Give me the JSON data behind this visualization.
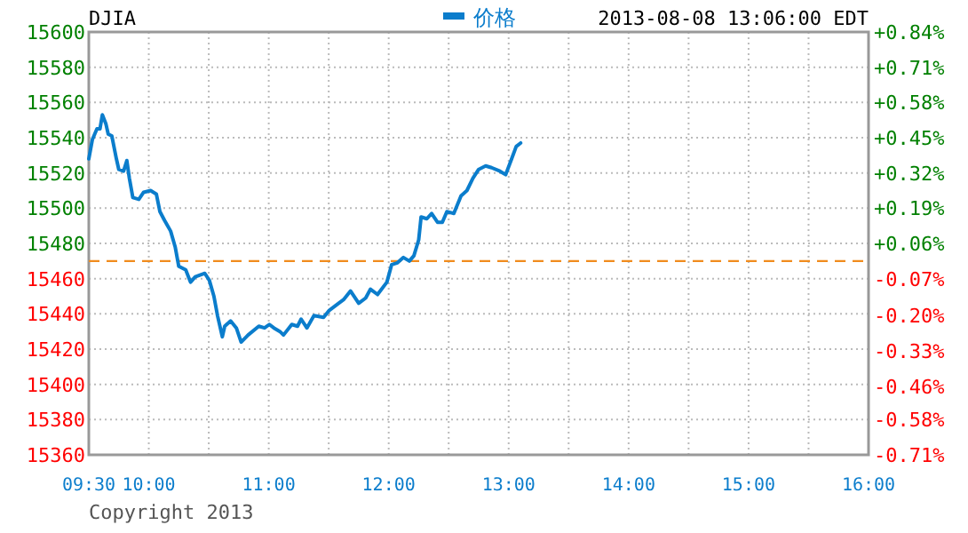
{
  "chart_data": {
    "type": "line",
    "title": "DJIA",
    "subtitle": "2013-08-08 13:06:00 EDT",
    "annotations": [
      "Copyright 2013"
    ],
    "x": [
      9.5,
      9.53,
      9.568,
      9.593,
      9.613,
      9.642,
      9.662,
      9.692,
      9.73,
      9.75,
      9.79,
      9.817,
      9.838,
      9.867,
      9.917,
      9.957,
      10.015,
      10.063,
      10.093,
      10.132,
      10.182,
      10.22,
      10.25,
      10.308,
      10.348,
      10.387,
      10.467,
      10.505,
      10.543,
      10.573,
      10.613,
      10.633,
      10.682,
      10.73,
      10.77,
      10.828,
      10.917,
      10.965,
      11.005,
      11.043,
      11.093,
      11.123,
      11.192,
      11.24,
      11.27,
      11.318,
      11.377,
      11.457,
      11.505,
      11.583,
      11.623,
      11.682,
      11.75,
      11.808,
      11.848,
      11.907,
      11.985,
      12.025,
      12.073,
      12.123,
      12.172,
      12.21,
      12.25,
      12.27,
      12.318,
      12.358,
      12.407,
      12.447,
      12.485,
      12.543,
      12.603,
      12.652,
      12.702,
      12.75,
      12.808,
      12.858,
      12.927,
      12.975,
      13.025,
      13.063,
      13.1
    ],
    "series": [
      {
        "name": "价格",
        "color": "#0b7dcc",
        "values": [
          15528,
          15539,
          15545,
          15545,
          15553,
          15548,
          15542,
          15541,
          15528,
          15522,
          15521,
          15527,
          15517,
          15506,
          15505,
          15509,
          15510,
          15508,
          15498,
          15493,
          15487,
          15478,
          15467,
          15465,
          15458,
          15461,
          15463,
          15459,
          15450,
          15439,
          15427,
          15433,
          15436,
          15432,
          15424,
          15428,
          15433,
          15432,
          15434,
          15432,
          15430,
          15428,
          15434,
          15433,
          15437,
          15432,
          15439,
          15438,
          15442,
          15446,
          15448,
          15453,
          15446,
          15449,
          15454,
          15451,
          15458,
          15468,
          15469,
          15472,
          15470,
          15473,
          15482,
          15495,
          15494,
          15497,
          15492,
          15492,
          15498,
          15497,
          15507,
          15510,
          15517,
          15522,
          15524,
          15523,
          15521,
          15519,
          15528,
          15535,
          15537
        ]
      }
    ],
    "xlim": [
      9.5,
      16
    ],
    "xticks": [
      {
        "value": 9.5,
        "label": "09:30"
      },
      {
        "value": 10,
        "label": "10:00"
      },
      {
        "value": 10.5,
        "label": null
      },
      {
        "value": 11,
        "label": "11:00"
      },
      {
        "value": 11.5,
        "label": null
      },
      {
        "value": 12,
        "label": "12:00"
      },
      {
        "value": 12.5,
        "label": null
      },
      {
        "value": 13,
        "label": "13:00"
      },
      {
        "value": 13.5,
        "label": null
      },
      {
        "value": 14,
        "label": "14:00"
      },
      {
        "value": 14.5,
        "label": null
      },
      {
        "value": 15,
        "label": "15:00"
      },
      {
        "value": 15.5,
        "label": null
      },
      {
        "value": 16,
        "label": "16:00"
      }
    ],
    "ylim": [
      15360,
      15600
    ],
    "yticks": [
      15360,
      15380,
      15400,
      15420,
      15440,
      15460,
      15480,
      15500,
      15520,
      15540,
      15560,
      15580,
      15600
    ],
    "y2lim": [
      -0.711,
      0.84
    ],
    "y2ticks": [
      {
        "value": -0.711,
        "label": "-0.71%"
      },
      {
        "value": -0.582,
        "label": "-0.58%"
      },
      {
        "value": -0.46,
        "label": "-0.46%"
      },
      {
        "value": -0.33,
        "label": "-0.33%"
      },
      {
        "value": -0.2,
        "label": "-0.20%"
      },
      {
        "value": -0.065,
        "label": "-0.07%"
      },
      {
        "value": 0.065,
        "label": "+0.06%"
      },
      {
        "value": 0.194,
        "label": "+0.19%"
      },
      {
        "value": 0.323,
        "label": "+0.32%"
      },
      {
        "value": 0.452,
        "label": "+0.45%"
      },
      {
        "value": 0.582,
        "label": "+0.58%"
      },
      {
        "value": 0.711,
        "label": "+0.71%"
      },
      {
        "value": 0.84,
        "label": "+0.84%"
      }
    ],
    "ref_lines": [
      {
        "axis": "y",
        "value": 15470,
        "color": "#f08c1e",
        "line_style": "dashed"
      }
    ],
    "grid": true,
    "legend": "top",
    "line_style": "solid"
  }
}
